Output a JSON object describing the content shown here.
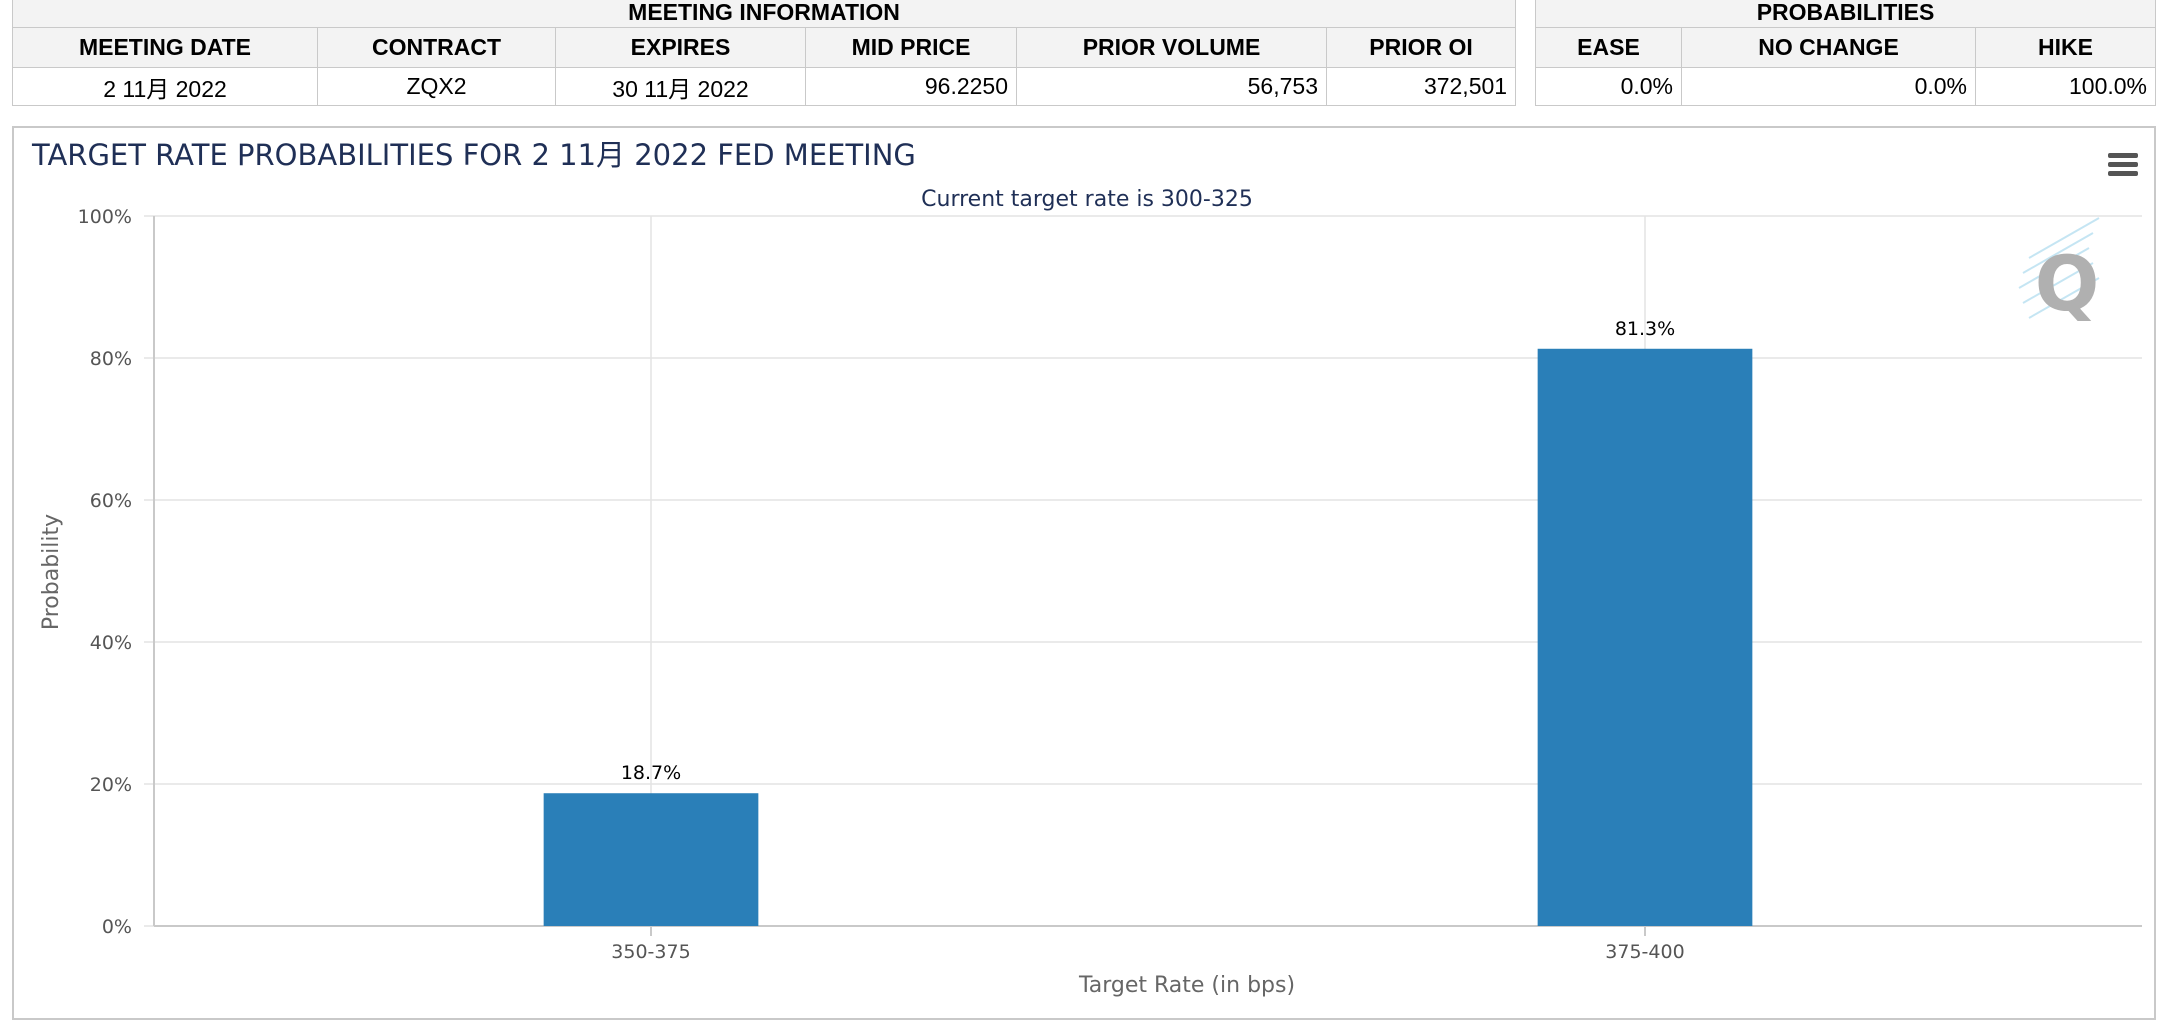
{
  "meeting_info": {
    "title": "MEETING INFORMATION",
    "headers": [
      "MEETING DATE",
      "CONTRACT",
      "EXPIRES",
      "MID PRICE",
      "PRIOR VOLUME",
      "PRIOR OI"
    ],
    "row": [
      "2 11月 2022",
      "ZQX2",
      "30 11月 2022",
      "96.2250",
      "56,753",
      "372,501"
    ]
  },
  "probabilities": {
    "title": "PROBABILITIES",
    "headers": [
      "EASE",
      "NO CHANGE",
      "HIKE"
    ],
    "row": [
      "0.0%",
      "0.0%",
      "100.0%"
    ]
  },
  "chart_data": {
    "type": "bar",
    "title": "TARGET RATE PROBABILITIES FOR 2 11月 2022 FED MEETING",
    "subtitle": "Current target rate is 300-325",
    "xlabel": "Target Rate (in bps)",
    "ylabel": "Probability",
    "categories": [
      "350-375",
      "375-400"
    ],
    "values": [
      18.7,
      81.3
    ],
    "data_labels": [
      "18.7%",
      "81.3%"
    ],
    "ylim": [
      0,
      100
    ],
    "yticks": [
      "0%",
      "20%",
      "40%",
      "60%",
      "80%",
      "100%"
    ],
    "ytick_values": [
      0,
      20,
      40,
      60,
      80,
      100
    ],
    "bar_color": "#2a7fb8",
    "grid": true,
    "watermark_letter": "Q"
  }
}
